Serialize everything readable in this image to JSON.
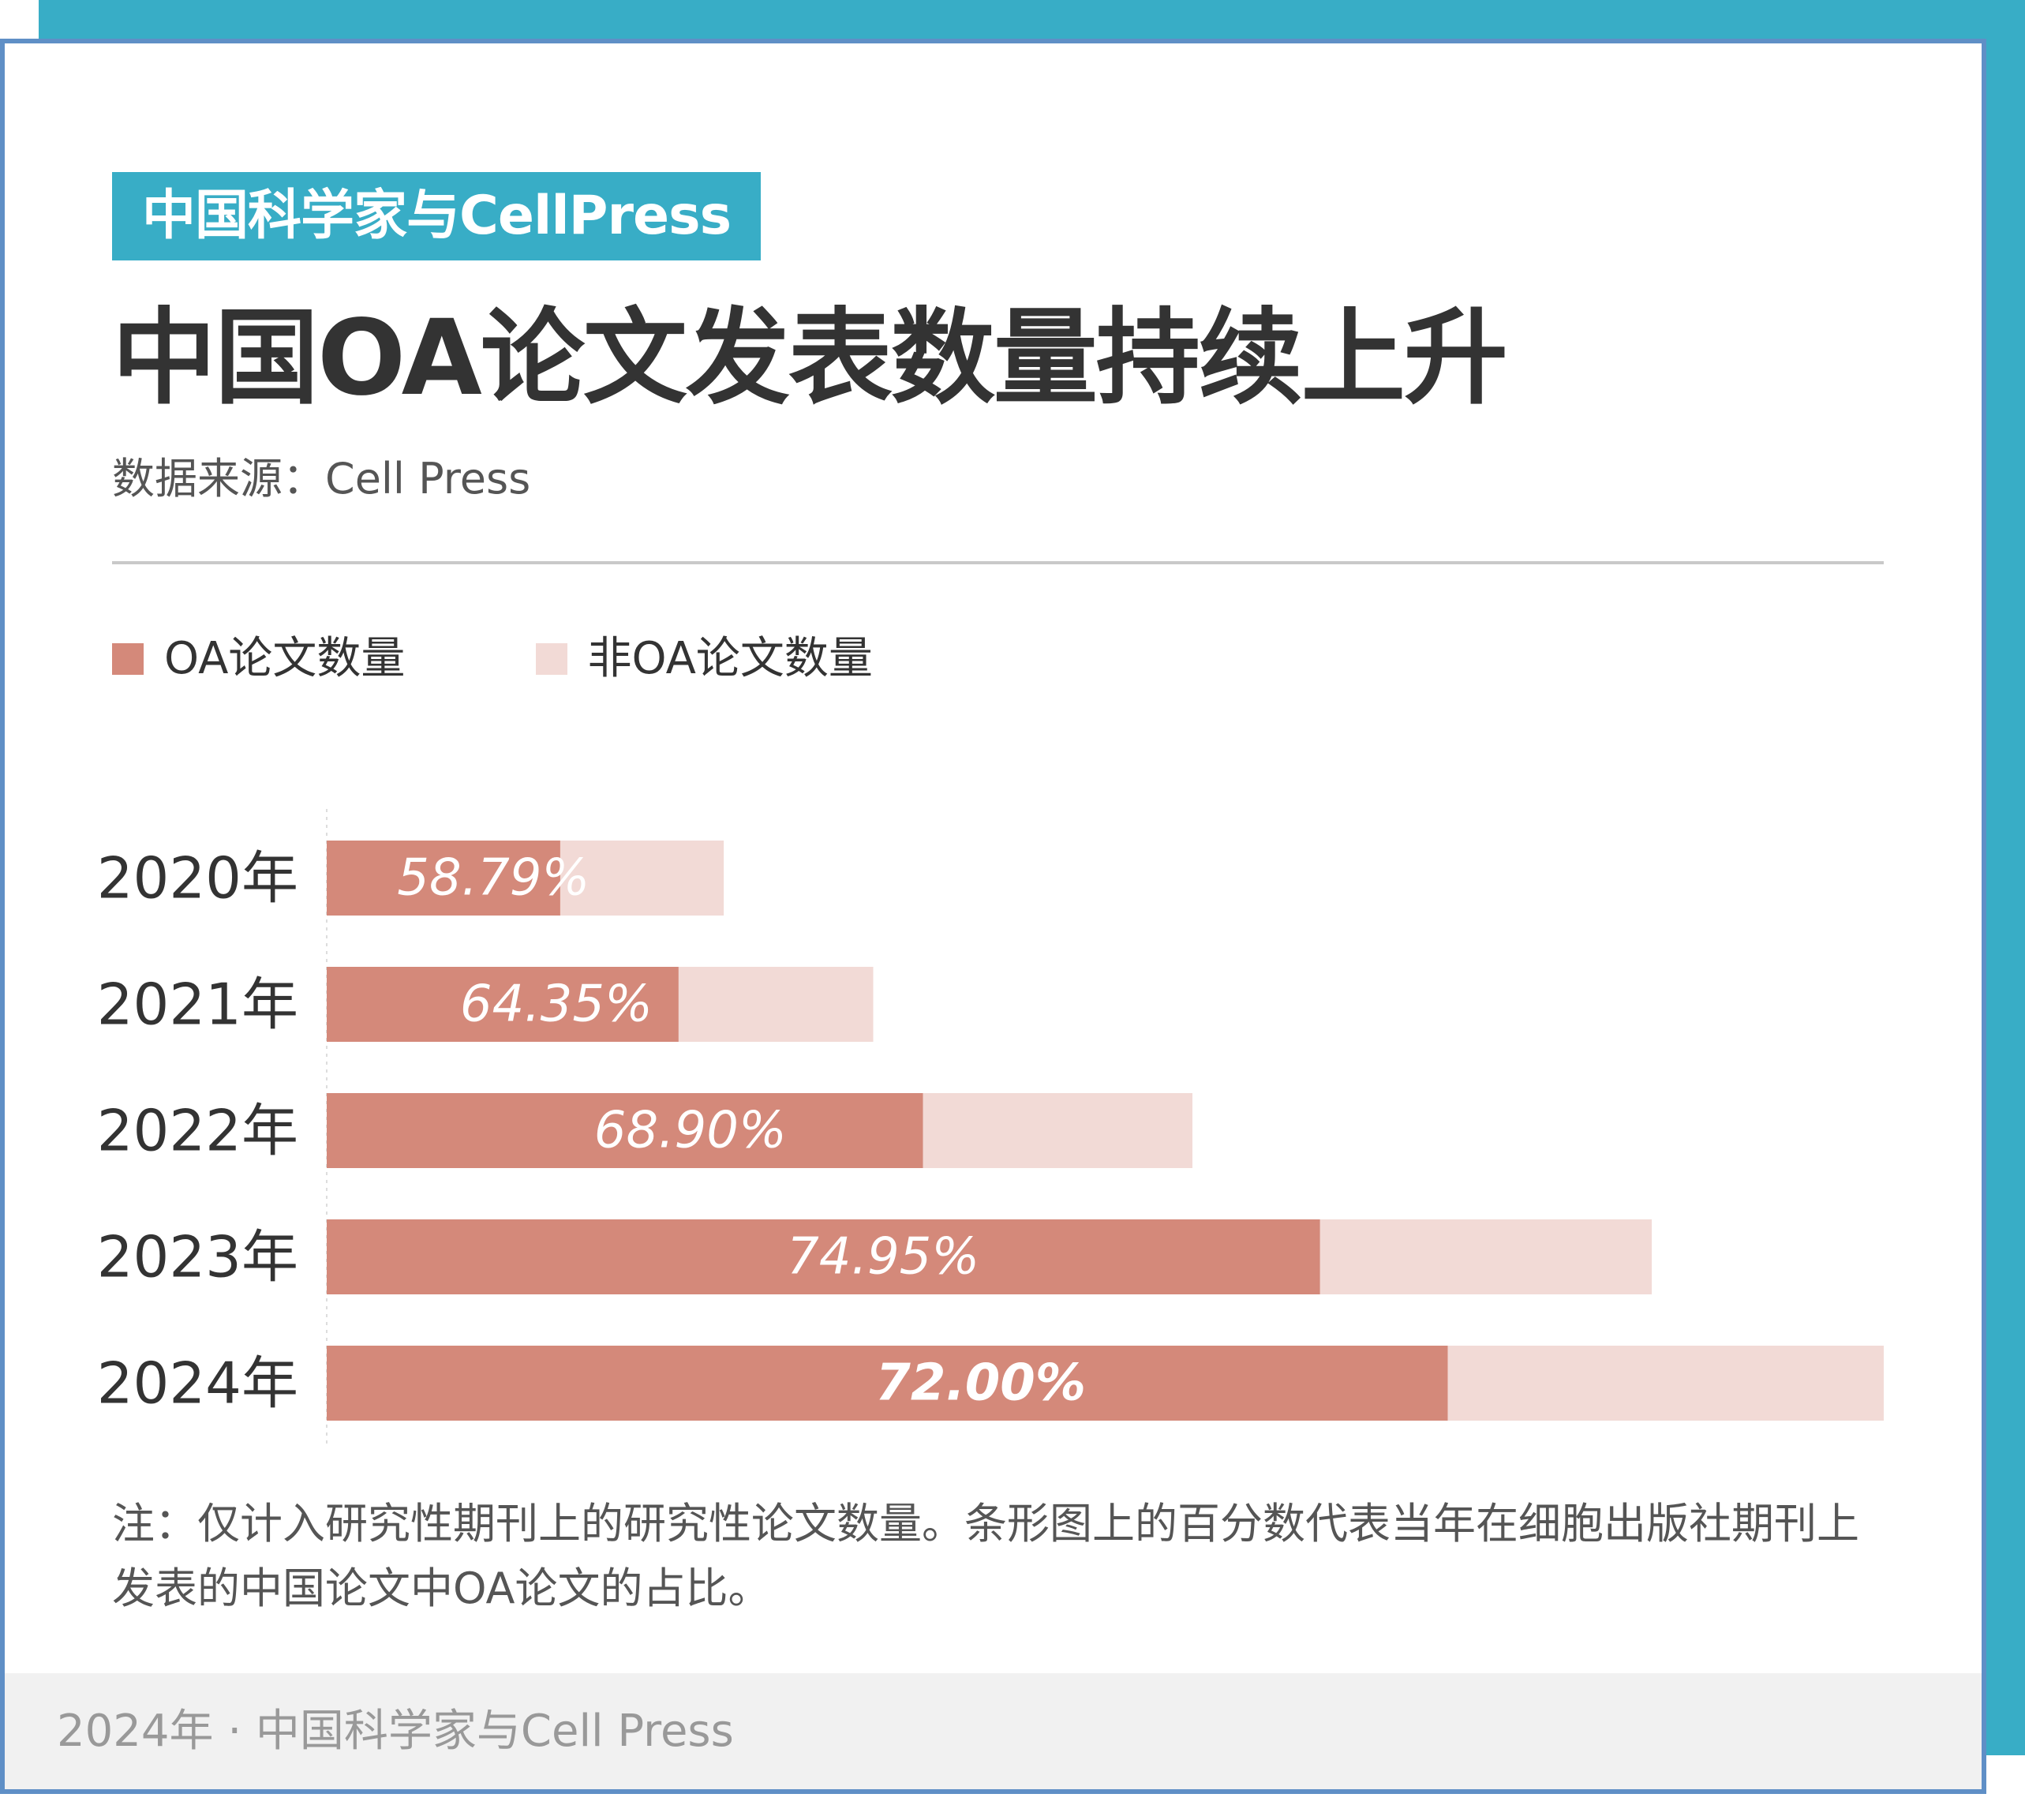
{
  "brand": {
    "tag": "中国科学家与CellPress"
  },
  "title": "中国OA论文发表数量持续上升",
  "source": "数据来源：Cell Press",
  "legend": [
    {
      "label": "OA论文数量",
      "color": "#d4897a"
    },
    {
      "label": "非OA论文数量",
      "color": "#f2dad6"
    }
  ],
  "chart_data": {
    "type": "bar",
    "orientation": "horizontal",
    "stacked": true,
    "categories": [
      "2020年",
      "2021年",
      "2022年",
      "2023年",
      "2024年"
    ],
    "series": [
      {
        "name": "OA论文数量",
        "color": "#d4897a",
        "values": [
          15.0,
          22.6,
          38.3,
          63.8,
          72.0
        ]
      },
      {
        "name": "非OA论文数量",
        "color": "#f2dad6",
        "values": [
          10.5,
          12.5,
          17.3,
          21.3,
          28.0
        ]
      }
    ],
    "labels": [
      "58.79%",
      "64.35%",
      "68.90%",
      "74.95%",
      "72.00%"
    ],
    "xlim": [
      0,
      100
    ],
    "grid": false,
    "legend_position": "top-left"
  },
  "note": "注：仅计入研究性期刊上的研究性论文数量。条形图上的百分数代表当年在细胞出版社期刊上发表的中国论文中OA论文的占比。",
  "footer": "2024年 · 中国科学家与Cell Press"
}
